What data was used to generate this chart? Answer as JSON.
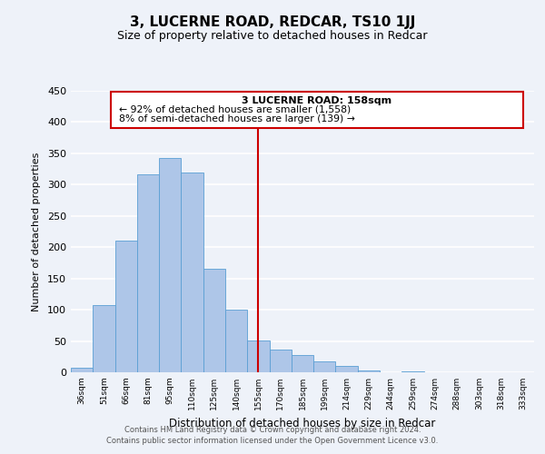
{
  "title": "3, LUCERNE ROAD, REDCAR, TS10 1JJ",
  "subtitle": "Size of property relative to detached houses in Redcar",
  "xlabel": "Distribution of detached houses by size in Redcar",
  "ylabel": "Number of detached properties",
  "bar_labels": [
    "36sqm",
    "51sqm",
    "66sqm",
    "81sqm",
    "95sqm",
    "110sqm",
    "125sqm",
    "140sqm",
    "155sqm",
    "170sqm",
    "185sqm",
    "199sqm",
    "214sqm",
    "229sqm",
    "244sqm",
    "259sqm",
    "274sqm",
    "288sqm",
    "303sqm",
    "318sqm",
    "333sqm"
  ],
  "bar_values": [
    7,
    107,
    210,
    317,
    343,
    320,
    165,
    100,
    51,
    37,
    28,
    18,
    10,
    3,
    0,
    2,
    0,
    0,
    0,
    0,
    0
  ],
  "bar_color": "#aec6e8",
  "bar_edge_color": "#5a9fd4",
  "vline_index": 8,
  "vline_color": "#cc0000",
  "annotation_title": "3 LUCERNE ROAD: 158sqm",
  "annotation_line1": "← 92% of detached houses are smaller (1,558)",
  "annotation_line2": "8% of semi-detached houses are larger (139) →",
  "annotation_box_color": "#cc0000",
  "ylim": [
    0,
    450
  ],
  "yticks": [
    0,
    50,
    100,
    150,
    200,
    250,
    300,
    350,
    400,
    450
  ],
  "footer_line1": "Contains HM Land Registry data © Crown copyright and database right 2024.",
  "footer_line2": "Contains public sector information licensed under the Open Government Licence v3.0.",
  "bg_color": "#eef2f9",
  "grid_color": "#ffffff"
}
